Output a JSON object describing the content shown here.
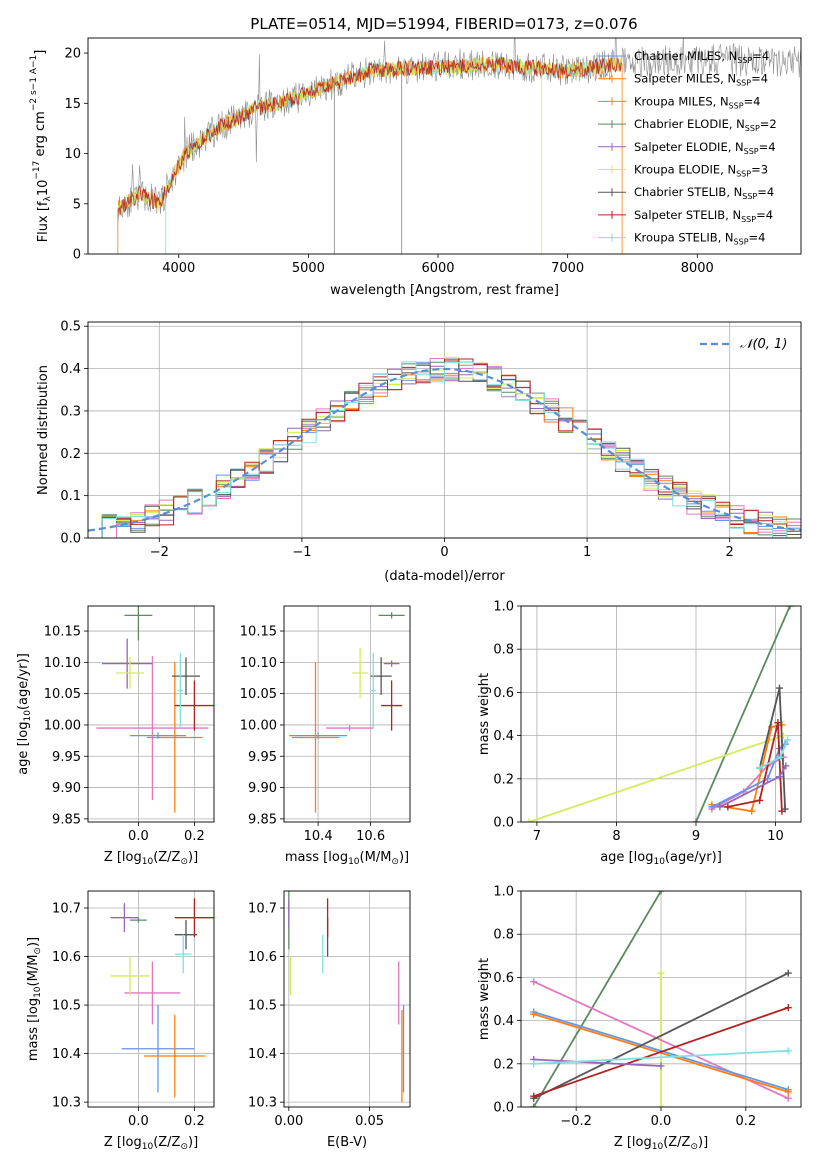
{
  "title": "PLATE=0514, MJD=51994, FIBERID=0173, z=0.076",
  "colors": {
    "c1": "#6495ed",
    "c2": "#ff7f0e",
    "c3": "#e377c2",
    "c4": "#5b8a62",
    "c5": "#9467bd",
    "c6": "#d4eb5a",
    "c7": "#555555",
    "c8": "#b22222",
    "c9": "#80dfe0",
    "gray": "#808080",
    "grid": "#b0b0b0"
  },
  "chart_data": [
    {
      "id": "spectrum",
      "type": "line",
      "xlabel": "wavelength [Angstrom, rest frame]",
      "ylabel_main": "Flux [f",
      "ylabel_sub": "λ",
      "ylabel_rest": "10",
      "ylabel_exp": "−17",
      "ylabel_tail": " erg cm",
      "ylabel_units": "−2 s−1 A−1",
      "xlim": [
        3300,
        8800
      ],
      "ylim": [
        0,
        21.5
      ],
      "xticks": [
        4000,
        5000,
        6000,
        7000,
        8000
      ],
      "yticks": [
        0,
        5,
        10,
        15,
        20
      ],
      "legend_position": "right",
      "legend": [
        {
          "name": "Chabrier MILES",
          "nssp": "4",
          "color": "c1"
        },
        {
          "name": "Salpeter MILES",
          "nssp": "4",
          "color": "c2"
        },
        {
          "name": "Kroupa MILES",
          "nssp": "4",
          "color": "c2"
        },
        {
          "name": "Chabrier ELODIE",
          "nssp": "2",
          "color": "c4"
        },
        {
          "name": "Salpeter ELODIE",
          "nssp": "4",
          "color": "c5"
        },
        {
          "name": "Kroupa ELODIE",
          "nssp": "3",
          "color": "c6"
        },
        {
          "name": "Chabrier STELIB",
          "nssp": "4",
          "color": "c7"
        },
        {
          "name": "Salpeter STELIB",
          "nssp": "4",
          "color": "c8"
        },
        {
          "name": "Kroupa STELIB",
          "nssp": "4",
          "color": "c9"
        }
      ],
      "legend_n_label": "N",
      "legend_n_sub": "SSP",
      "continuum": [
        [
          3530,
          4.5
        ],
        [
          3700,
          6.0
        ],
        [
          3850,
          5.0
        ],
        [
          3950,
          7.5
        ],
        [
          4050,
          10.0
        ],
        [
          4300,
          12.5
        ],
        [
          4600,
          14.5
        ],
        [
          4900,
          15.5
        ],
        [
          5200,
          17.0
        ],
        [
          5500,
          18.3
        ],
        [
          5800,
          18.5
        ],
        [
          6100,
          18.6
        ],
        [
          6400,
          18.9
        ],
        [
          6700,
          18.6
        ],
        [
          7000,
          18.2
        ],
        [
          7300,
          18.8
        ],
        [
          7600,
          19.2
        ],
        [
          8000,
          19.4
        ],
        [
          8400,
          19.2
        ],
        [
          8800,
          19.0
        ]
      ],
      "gaps": [
        [
          7400,
          7700
        ]
      ]
    },
    {
      "id": "residuals",
      "type": "step",
      "xlabel": "(data-model)/error",
      "ylabel": "Normed distribution",
      "xlim": [
        -2.5,
        2.5
      ],
      "ylim": [
        0,
        0.51
      ],
      "xticks": [
        -2,
        -1,
        0,
        1,
        2
      ],
      "yticks": [
        0.0,
        0.1,
        0.2,
        0.3,
        0.4,
        0.5
      ],
      "legend": "𝒩(0, 1)",
      "legend_position": "top-right",
      "bin_width": 0.1,
      "grid": true
    },
    {
      "id": "age-vs-z",
      "type": "errorbar",
      "xlabel_main": "Z [log",
      "xlabel_sub": "10",
      "xlabel_rest": "(Z/Z",
      "xlabel_sub2": "⊙",
      "xlabel_end": ")]",
      "ylabel_main": "age  [log",
      "ylabel_sub": "10",
      "ylabel_rest": "(age/yr)]",
      "xlim": [
        -0.18,
        0.27
      ],
      "ylim": [
        9.845,
        10.19
      ],
      "xticks": [
        0.0,
        0.2
      ],
      "yticks": [
        9.85,
        9.9,
        9.95,
        10.0,
        10.05,
        10.1,
        10.15
      ],
      "points": [
        {
          "color": "c1",
          "x": 0.07,
          "xerr": 0.1,
          "y": 9.983,
          "yerr": 0.005
        },
        {
          "color": "c2",
          "x": 0.13,
          "xerr": 0.1,
          "y": 9.98,
          "yerr": 0.12
        },
        {
          "color": "c3",
          "x": 0.05,
          "xerr": 0.2,
          "y": 9.995,
          "yerr": 0.115
        },
        {
          "color": "c4",
          "x": 0.0,
          "xerr": 0.05,
          "y": 10.175,
          "yerr": 0.04
        },
        {
          "color": "c5",
          "x": -0.04,
          "xerr": 0.09,
          "y": 10.098,
          "yerr": 0.04
        },
        {
          "color": "c6",
          "x": -0.03,
          "xerr": 0.05,
          "y": 10.083,
          "yerr": 0.025
        },
        {
          "color": "c7",
          "x": 0.17,
          "xerr": 0.05,
          "y": 10.078,
          "yerr": 0.03
        },
        {
          "color": "c8",
          "x": 0.2,
          "xerr": 0.07,
          "y": 10.031,
          "yerr": 0.04
        },
        {
          "color": "c9",
          "x": 0.15,
          "xerr": 0.01,
          "y": 10.055,
          "yerr": 0.06
        }
      ]
    },
    {
      "id": "age-vs-mass",
      "type": "errorbar",
      "xlabel_main": "mass [log",
      "xlabel_sub": "10",
      "xlabel_rest": "(M/M",
      "xlabel_sub2": "⊙",
      "xlabel_end": ")]",
      "ylabel": "",
      "xlim": [
        10.27,
        10.75
      ],
      "ylim": [
        9.845,
        10.19
      ],
      "xticks": [
        10.4,
        10.6
      ],
      "yticks": [
        9.85,
        9.9,
        9.95,
        10.0,
        10.05,
        10.1,
        10.15
      ],
      "points": [
        {
          "color": "c1",
          "x": 10.4,
          "xerr": 0.11,
          "y": 9.983,
          "yerr": 0.005
        },
        {
          "color": "c2",
          "x": 10.39,
          "xerr": 0.09,
          "y": 9.98,
          "yerr": 0.12
        },
        {
          "color": "c3",
          "x": 10.52,
          "xerr": 0.09,
          "y": 9.995,
          "yerr": 0.005
        },
        {
          "color": "c4",
          "x": 10.68,
          "xerr": 0.05,
          "y": 10.175,
          "yerr": 0.005
        },
        {
          "color": "c5",
          "x": 10.68,
          "xerr": 0.03,
          "y": 10.098,
          "yerr": 0.005
        },
        {
          "color": "c6",
          "x": 10.56,
          "xerr": 0.03,
          "y": 10.083,
          "yerr": 0.04
        },
        {
          "color": "c7",
          "x": 10.64,
          "xerr": 0.04,
          "y": 10.078,
          "yerr": 0.03
        },
        {
          "color": "c8",
          "x": 10.68,
          "xerr": 0.04,
          "y": 10.031,
          "yerr": 0.04
        },
        {
          "color": "c9",
          "x": 10.61,
          "xerr": 0.01,
          "y": 10.055,
          "yerr": 0.06
        }
      ]
    },
    {
      "id": "weight-vs-age",
      "type": "line",
      "xlabel_main": "age  [log",
      "xlabel_sub": "10",
      "xlabel_rest": "(age/yr)]",
      "ylabel": "mass weight",
      "xlim": [
        6.8,
        10.32
      ],
      "ylim": [
        0,
        1.0
      ],
      "xticks": [
        7,
        8,
        9,
        10
      ],
      "yticks": [
        0.0,
        0.2,
        0.4,
        0.6,
        0.8,
        1.0
      ],
      "series": [
        {
          "color": "c4",
          "points": [
            [
              9.0,
              0.0
            ],
            [
              10.18,
              1.0
            ]
          ]
        },
        {
          "color": "c6",
          "points": [
            [
              6.9,
              0.0
            ],
            [
              10.1,
              0.4
            ]
          ]
        },
        {
          "color": "c3",
          "points": [
            [
              9.2,
              0.06
            ],
            [
              9.6,
              0.14
            ],
            [
              9.9,
              0.26
            ],
            [
              10.1,
              0.3
            ]
          ]
        },
        {
          "color": "c2",
          "points": [
            [
              9.2,
              0.08
            ],
            [
              9.7,
              0.05
            ],
            [
              9.95,
              0.44
            ],
            [
              10.08,
              0.45
            ]
          ]
        },
        {
          "color": "c1",
          "points": [
            [
              9.2,
              0.07
            ],
            [
              9.9,
              0.2
            ],
            [
              10.05,
              0.34
            ],
            [
              10.12,
              0.36
            ]
          ]
        },
        {
          "color": "c8",
          "points": [
            [
              9.4,
              0.07
            ],
            [
              9.8,
              0.1
            ],
            [
              10.03,
              0.46
            ],
            [
              10.08,
              0.05
            ]
          ]
        },
        {
          "color": "c7",
          "points": [
            [
              9.8,
              0.25
            ],
            [
              10.05,
              0.62
            ],
            [
              10.12,
              0.06
            ]
          ]
        },
        {
          "color": "c5",
          "points": [
            [
              9.3,
              0.07
            ],
            [
              10.05,
              0.21
            ],
            [
              10.13,
              0.26
            ]
          ]
        },
        {
          "color": "c9",
          "points": [
            [
              9.8,
              0.25
            ],
            [
              10.06,
              0.3
            ],
            [
              10.15,
              0.38
            ]
          ]
        }
      ]
    },
    {
      "id": "mass-vs-z",
      "type": "errorbar",
      "xlabel_main": "Z [log",
      "xlabel_sub": "10",
      "xlabel_rest": "(Z/Z",
      "xlabel_sub2": "⊙",
      "xlabel_end": ")]",
      "ylabel_main": "mass [log",
      "ylabel_sub": "10",
      "ylabel_rest": "(M/M",
      "ylabel_sub2": "⊙",
      "ylabel_end": ")]",
      "xlim": [
        -0.18,
        0.27
      ],
      "ylim": [
        10.29,
        10.735
      ],
      "xticks": [
        0.0,
        0.2
      ],
      "yticks": [
        10.3,
        10.4,
        10.5,
        10.6,
        10.7
      ],
      "points": [
        {
          "color": "c1",
          "x": 0.07,
          "xerr": 0.13,
          "y": 10.41,
          "yerr": 0.09
        },
        {
          "color": "c2",
          "x": 0.13,
          "xerr": 0.11,
          "y": 10.395,
          "yerr": 0.085
        },
        {
          "color": "c3",
          "x": 0.05,
          "xerr": 0.1,
          "y": 10.525,
          "yerr": 0.065
        },
        {
          "color": "c4",
          "x": 0.0,
          "xerr": 0.03,
          "y": 10.675,
          "yerr": 0.005
        },
        {
          "color": "c5",
          "x": -0.05,
          "xerr": 0.05,
          "y": 10.68,
          "yerr": 0.03
        },
        {
          "color": "c6",
          "x": -0.03,
          "xerr": 0.07,
          "y": 10.56,
          "yerr": 0.04
        },
        {
          "color": "c7",
          "x": 0.17,
          "xerr": 0.04,
          "y": 10.645,
          "yerr": 0.03
        },
        {
          "color": "c8",
          "x": 0.2,
          "xerr": 0.07,
          "y": 10.68,
          "yerr": 0.04
        },
        {
          "color": "c9",
          "x": 0.16,
          "xerr": 0.03,
          "y": 10.605,
          "yerr": 0.04
        }
      ]
    },
    {
      "id": "mass-vs-ebv",
      "type": "errorbar",
      "xlabel": "E(B-V)",
      "ylabel": "",
      "xlim": [
        -0.003,
        0.075
      ],
      "ylim": [
        10.29,
        10.735
      ],
      "xticks": [
        0.0,
        0.05
      ],
      "yticks": [
        10.3,
        10.4,
        10.5,
        10.6,
        10.7
      ],
      "points": [
        {
          "color": "c1",
          "x": 0.071,
          "xerr": 0.0,
          "y": 10.41,
          "yerr": 0.09
        },
        {
          "color": "c2",
          "x": 0.07,
          "xerr": 0.0,
          "y": 10.395,
          "yerr": 0.095
        },
        {
          "color": "c3",
          "x": 0.068,
          "xerr": 0.0,
          "y": 10.525,
          "yerr": 0.065
        },
        {
          "color": "c4",
          "x": 0.0,
          "xerr": 0.0,
          "y": 10.675,
          "yerr": 0.06
        },
        {
          "color": "c5",
          "x": 0.0,
          "xerr": 0.0,
          "y": 10.69,
          "yerr": 0.03
        },
        {
          "color": "c6",
          "x": 0.001,
          "xerr": 0.0,
          "y": 10.56,
          "yerr": 0.04
        },
        {
          "color": "c7",
          "x": 0.024,
          "xerr": 0.0,
          "y": 10.64,
          "yerr": 0.04
        },
        {
          "color": "c8",
          "x": 0.024,
          "xerr": 0.0,
          "y": 10.68,
          "yerr": 0.04
        },
        {
          "color": "c9",
          "x": 0.021,
          "xerr": 0.0,
          "y": 10.605,
          "yerr": 0.04
        }
      ]
    },
    {
      "id": "weight-vs-z",
      "type": "line",
      "xlabel_main": "Z [log",
      "xlabel_sub": "10",
      "xlabel_rest": "(Z/Z",
      "xlabel_sub2": "⊙",
      "xlabel_end": ")]",
      "ylabel": "mass weight",
      "xlim": [
        -0.33,
        0.33
      ],
      "ylim": [
        0,
        1.0
      ],
      "xticks": [
        -0.2,
        0.0,
        0.2
      ],
      "yticks": [
        0.0,
        0.2,
        0.4,
        0.6,
        0.8,
        1.0
      ],
      "series": [
        {
          "color": "c4",
          "points": [
            [
              -0.3,
              0.0
            ],
            [
              0.0,
              1.0
            ]
          ]
        },
        {
          "color": "c6",
          "points": [
            [
              0.0,
              0.0
            ],
            [
              0.0,
              0.62
            ]
          ]
        },
        {
          "color": "c3",
          "points": [
            [
              -0.3,
              0.58
            ],
            [
              0.3,
              0.04
            ]
          ]
        },
        {
          "color": "c1",
          "points": [
            [
              -0.3,
              0.44
            ],
            [
              0.3,
              0.08
            ]
          ]
        },
        {
          "color": "c2",
          "points": [
            [
              -0.3,
              0.43
            ],
            [
              0.3,
              0.07
            ]
          ]
        },
        {
          "color": "c7",
          "points": [
            [
              -0.3,
              0.04
            ],
            [
              0.3,
              0.62
            ]
          ]
        },
        {
          "color": "c8",
          "points": [
            [
              -0.3,
              0.05
            ],
            [
              0.3,
              0.46
            ]
          ]
        },
        {
          "color": "c5",
          "points": [
            [
              -0.3,
              0.22
            ],
            [
              0.0,
              0.19
            ]
          ]
        },
        {
          "color": "c9",
          "points": [
            [
              -0.3,
              0.2
            ],
            [
              0.3,
              0.26
            ]
          ]
        }
      ]
    }
  ]
}
